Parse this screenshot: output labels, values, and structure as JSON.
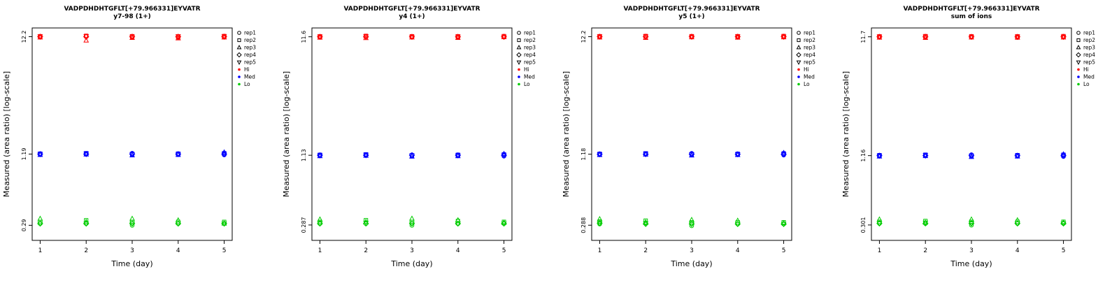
{
  "figure": {
    "background": "#ffffff"
  },
  "legend": {
    "reps": [
      {
        "label": "rep1",
        "symbol": "circle"
      },
      {
        "label": "rep2",
        "symbol": "square"
      },
      {
        "label": "rep3",
        "symbol": "triangle-up"
      },
      {
        "label": "rep4",
        "symbol": "diamond"
      },
      {
        "label": "rep5",
        "symbol": "triangle-down"
      }
    ],
    "levels": [
      {
        "label": "Hi",
        "color": "#FF0000"
      },
      {
        "label": "Med",
        "color": "#0000FF"
      },
      {
        "label": "Lo",
        "color": "#00CC00"
      }
    ]
  },
  "chart_data": [
    {
      "type": "scatter",
      "title": "VADPDHDHTGFLT[+79.966331]EYVATR",
      "subtitle": "y7-98 (1+)",
      "xlabel": "Time (day)",
      "ylabel": "Measured (area ratio) [log-scale]",
      "x_values": [
        1,
        2,
        3,
        4,
        5
      ],
      "x_ticks": [
        "1",
        "2",
        "3",
        "4",
        "5"
      ],
      "y_scale": "log",
      "ylim": [
        0.215,
        14.5
      ],
      "y_ticks": [
        {
          "value": 12.2,
          "label": "12.2"
        },
        {
          "value": 1.19,
          "label": "1.19"
        },
        {
          "value": 0.29,
          "label": "0.29"
        }
      ],
      "series": [
        {
          "name": "Hi",
          "color": "#FF0000",
          "values_by_day": [
            [
              12.1,
              12.3,
              12.0,
              12.2,
              12.25
            ],
            [
              12.2,
              12.4,
              11.3,
              12.2,
              12.3
            ],
            [
              12.1,
              12.3,
              11.9,
              12.2,
              12.2
            ],
            [
              12.0,
              12.25,
              11.8,
              12.2,
              12.3
            ],
            [
              12.1,
              12.35,
              12.0,
              12.2,
              12.25
            ]
          ]
        },
        {
          "name": "Med",
          "color": "#0000FF",
          "values_by_day": [
            [
              1.18,
              1.2,
              1.17,
              1.19,
              1.19
            ],
            [
              1.19,
              1.21,
              1.18,
              1.19,
              1.2
            ],
            [
              1.21,
              1.18,
              1.16,
              1.19,
              1.19
            ],
            [
              1.18,
              1.2,
              1.17,
              1.19,
              1.19
            ],
            [
              1.17,
              1.21,
              1.23,
              1.19,
              1.19
            ]
          ]
        },
        {
          "name": "Lo",
          "color": "#00CC00",
          "values_by_day": [
            [
              0.3,
              0.31,
              0.33,
              0.3,
              0.3
            ],
            [
              0.3,
              0.32,
              0.31,
              0.3,
              0.3
            ],
            [
              0.29,
              0.31,
              0.33,
              0.3,
              0.3
            ],
            [
              0.3,
              0.31,
              0.32,
              0.3,
              0.3
            ],
            [
              0.3,
              0.31,
              0.3,
              0.3,
              0.3
            ]
          ]
        }
      ]
    },
    {
      "type": "scatter",
      "title": "VADPDHDHTGFLT[+79.966331]EYVATR",
      "subtitle": "y4 (1+)",
      "xlabel": "Time (day)",
      "ylabel": "Measured (area ratio) [log-scale]",
      "x_values": [
        1,
        2,
        3,
        4,
        5
      ],
      "x_ticks": [
        "1",
        "2",
        "3",
        "4",
        "5"
      ],
      "y_scale": "log",
      "ylim": [
        0.212,
        13.8
      ],
      "y_ticks": [
        {
          "value": 11.6,
          "label": "11.6"
        },
        {
          "value": 1.13,
          "label": "1.13"
        },
        {
          "value": 0.287,
          "label": "0.287"
        }
      ],
      "series": [
        {
          "name": "Hi",
          "color": "#FF0000",
          "values_by_day": [
            [
              11.5,
              11.7,
              11.4,
              11.6,
              11.65
            ],
            [
              11.6,
              11.8,
              11.3,
              11.6,
              11.7
            ],
            [
              11.55,
              11.7,
              11.45,
              11.6,
              11.6
            ],
            [
              11.5,
              11.7,
              11.35,
              11.6,
              11.65
            ],
            [
              11.55,
              11.75,
              11.5,
              11.6,
              11.6
            ]
          ]
        },
        {
          "name": "Med",
          "color": "#0000FF",
          "values_by_day": [
            [
              1.12,
              1.14,
              1.11,
              1.13,
              1.13
            ],
            [
              1.13,
              1.15,
              1.12,
              1.13,
              1.14
            ],
            [
              1.14,
              1.12,
              1.1,
              1.13,
              1.13
            ],
            [
              1.12,
              1.14,
              1.11,
              1.13,
              1.13
            ],
            [
              1.11,
              1.15,
              1.16,
              1.13,
              1.13
            ]
          ]
        },
        {
          "name": "Lo",
          "color": "#00CC00",
          "values_by_day": [
            [
              0.295,
              0.305,
              0.32,
              0.295,
              0.295
            ],
            [
              0.295,
              0.315,
              0.305,
              0.295,
              0.3
            ],
            [
              0.285,
              0.305,
              0.325,
              0.295,
              0.295
            ],
            [
              0.295,
              0.31,
              0.315,
              0.295,
              0.295
            ],
            [
              0.295,
              0.305,
              0.3,
              0.295,
              0.295
            ]
          ]
        }
      ]
    },
    {
      "type": "scatter",
      "title": "VADPDHDHTGFLT[+79.966331]EYVATR",
      "subtitle": "y5 (1+)",
      "xlabel": "Time (day)",
      "ylabel": "Measured (area ratio) [log-scale]",
      "x_values": [
        1,
        2,
        3,
        4,
        5
      ],
      "x_ticks": [
        "1",
        "2",
        "3",
        "4",
        "5"
      ],
      "y_scale": "log",
      "ylim": [
        0.213,
        14.5
      ],
      "y_ticks": [
        {
          "value": 12.2,
          "label": "12.2"
        },
        {
          "value": 1.18,
          "label": "1.18"
        },
        {
          "value": 0.288,
          "label": "0.288"
        }
      ],
      "series": [
        {
          "name": "Hi",
          "color": "#FF0000",
          "values_by_day": [
            [
              12.1,
              12.3,
              12.0,
              12.2,
              12.25
            ],
            [
              12.15,
              12.35,
              11.9,
              12.2,
              12.25
            ],
            [
              12.1,
              12.3,
              12.05,
              12.2,
              12.2
            ],
            [
              12.05,
              12.3,
              11.95,
              12.2,
              12.25
            ],
            [
              12.1,
              12.35,
              12.05,
              12.2,
              12.2
            ]
          ]
        },
        {
          "name": "Med",
          "color": "#0000FF",
          "values_by_day": [
            [
              1.17,
              1.19,
              1.16,
              1.18,
              1.18
            ],
            [
              1.18,
              1.2,
              1.17,
              1.18,
              1.19
            ],
            [
              1.2,
              1.17,
              1.15,
              1.18,
              1.18
            ],
            [
              1.17,
              1.19,
              1.16,
              1.18,
              1.18
            ],
            [
              1.16,
              1.2,
              1.21,
              1.18,
              1.18
            ]
          ]
        },
        {
          "name": "Lo",
          "color": "#00CC00",
          "values_by_day": [
            [
              0.295,
              0.31,
              0.325,
              0.3,
              0.3
            ],
            [
              0.3,
              0.315,
              0.305,
              0.295,
              0.3
            ],
            [
              0.285,
              0.305,
              0.32,
              0.295,
              0.295
            ],
            [
              0.295,
              0.305,
              0.315,
              0.295,
              0.295
            ],
            [
              0.295,
              0.305,
              0.3,
              0.295,
              0.295
            ]
          ]
        }
      ]
    },
    {
      "type": "scatter",
      "title": "VADPDHDHTGFLT[+79.966331]EYVATR",
      "subtitle": "sum of ions",
      "xlabel": "Time (day)",
      "ylabel": "Measured (area ratio) [log-scale]",
      "x_values": [
        1,
        2,
        3,
        4,
        5
      ],
      "x_ticks": [
        "1",
        "2",
        "3",
        "4",
        "5"
      ],
      "y_scale": "log",
      "ylim": [
        0.223,
        13.9
      ],
      "y_ticks": [
        {
          "value": 11.7,
          "label": "11.7"
        },
        {
          "value": 1.16,
          "label": "1.16"
        },
        {
          "value": 0.301,
          "label": "0.301"
        }
      ],
      "series": [
        {
          "name": "Hi",
          "color": "#FF0000",
          "values_by_day": [
            [
              11.6,
              11.8,
              11.5,
              11.7,
              11.75
            ],
            [
              11.65,
              11.85,
              11.45,
              11.7,
              11.75
            ],
            [
              11.6,
              11.8,
              11.55,
              11.7,
              11.7
            ],
            [
              11.55,
              11.8,
              11.5,
              11.7,
              11.75
            ],
            [
              11.6,
              11.85,
              11.55,
              11.7,
              11.7
            ]
          ]
        },
        {
          "name": "Med",
          "color": "#0000FF",
          "values_by_day": [
            [
              1.15,
              1.17,
              1.14,
              1.16,
              1.16
            ],
            [
              1.16,
              1.18,
              1.15,
              1.16,
              1.17
            ],
            [
              1.18,
              1.15,
              1.13,
              1.16,
              1.16
            ],
            [
              1.15,
              1.17,
              1.14,
              1.16,
              1.16
            ],
            [
              1.14,
              1.18,
              1.19,
              1.16,
              1.16
            ]
          ]
        },
        {
          "name": "Lo",
          "color": "#00CC00",
          "values_by_day": [
            [
              0.31,
              0.32,
              0.335,
              0.31,
              0.31
            ],
            [
              0.31,
              0.325,
              0.315,
              0.31,
              0.315
            ],
            [
              0.3,
              0.32,
              0.335,
              0.31,
              0.31
            ],
            [
              0.31,
              0.32,
              0.33,
              0.31,
              0.31
            ],
            [
              0.31,
              0.32,
              0.315,
              0.31,
              0.31
            ]
          ]
        }
      ]
    }
  ]
}
